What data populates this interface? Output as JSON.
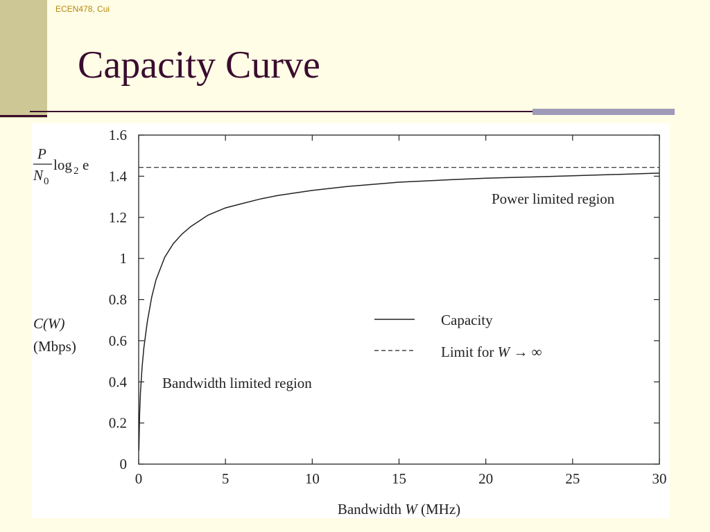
{
  "slide": {
    "footer": "ECEN478, Cui",
    "title": "Capacity Curve"
  },
  "colors": {
    "background": "#fffde6",
    "sidebar": "#cdc795",
    "title": "#3a0c2f",
    "footer": "#b8860b",
    "accent_rule": "#9f9ab8"
  },
  "chart_data": {
    "type": "line",
    "xlabel_prefix": "Bandwidth ",
    "xlabel_var": "W",
    "xlabel_suffix": " (MHz)",
    "ylabel_var": "C(W)",
    "ylabel_unit": "(Mbps)",
    "limit_label_num": "P",
    "limit_label_den": "N",
    "limit_label_den_sub": "0",
    "limit_label_fn": "log",
    "limit_label_fn_sub": "2",
    "limit_label_arg": "e",
    "xlim": [
      0,
      30
    ],
    "ylim": [
      0,
      1.6
    ],
    "xticks": [
      0,
      5,
      10,
      15,
      20,
      25,
      30
    ],
    "xtick_labels": [
      "0",
      "5",
      "10",
      "15",
      "20",
      "25",
      "30"
    ],
    "yticks": [
      0,
      0.2,
      0.4,
      0.6,
      0.8,
      1.0,
      1.2,
      1.4,
      1.6
    ],
    "ytick_labels": [
      "0",
      "0.2",
      "0.4",
      "0.6",
      "0.8",
      "1",
      "1.2",
      "1.4",
      "1.6"
    ],
    "grid": false,
    "legend_position": "center-right",
    "series": [
      {
        "name": "Capacity",
        "style": "solid",
        "x": [
          0.01,
          0.05,
          0.1,
          0.2,
          0.3,
          0.5,
          0.75,
          1,
          1.5,
          2,
          2.5,
          3,
          4,
          5,
          6,
          7,
          8,
          10,
          12,
          15,
          18,
          20,
          25,
          30
        ],
        "y": [
          0.066,
          0.236,
          0.346,
          0.475,
          0.566,
          0.693,
          0.812,
          0.896,
          1.006,
          1.073,
          1.119,
          1.155,
          1.211,
          1.246,
          1.268,
          1.289,
          1.306,
          1.331,
          1.35,
          1.371,
          1.383,
          1.39,
          1.402,
          1.415
        ]
      },
      {
        "name": "Limit for W → ∞",
        "legend_text": "Limit for ",
        "legend_var": "W",
        "legend_arrow": " → ∞",
        "style": "dashed",
        "x": [
          0,
          30
        ],
        "y": [
          1.4427,
          1.4427
        ]
      }
    ],
    "annotations": {
      "power_region": "Power limited region",
      "bandwidth_region": "Bandwidth limited region"
    }
  }
}
